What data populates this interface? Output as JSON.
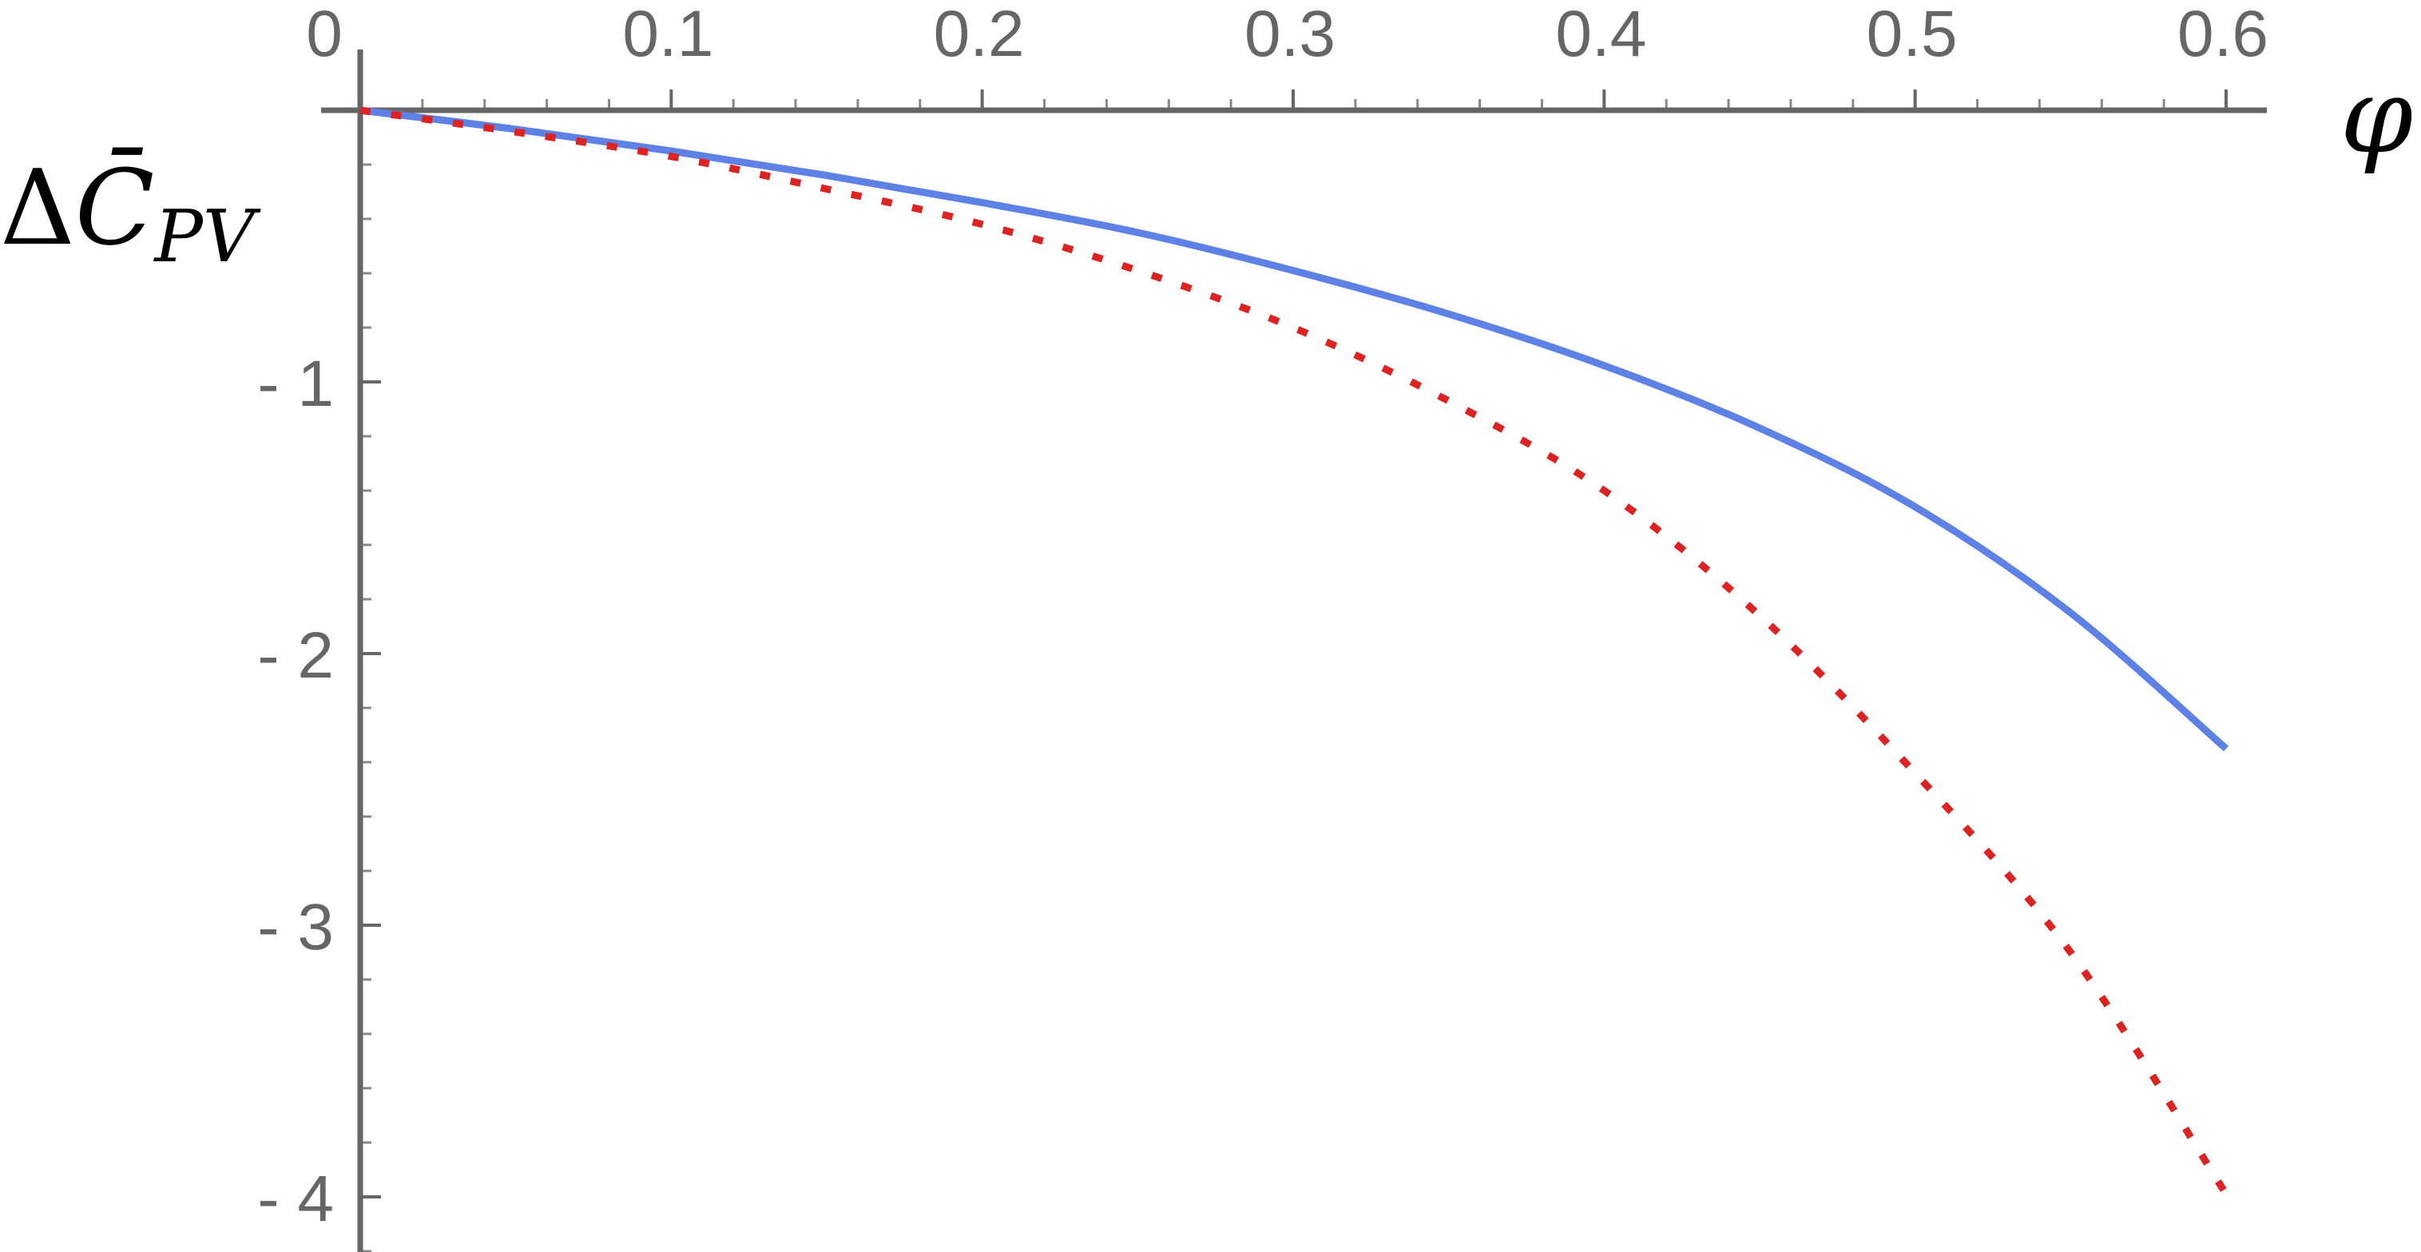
{
  "chart_data": {
    "type": "line",
    "xlabel": "φ",
    "ylabel": {
      "prefix": "Δ",
      "symbol": "C̄",
      "subscript": "PV"
    },
    "xlim": [
      0,
      0.6
    ],
    "ylim": [
      -4.2,
      0.2
    ],
    "x_ticks": [
      {
        "value": 0,
        "label": "0"
      },
      {
        "value": 0.1,
        "label": "0.1"
      },
      {
        "value": 0.2,
        "label": "0.2"
      },
      {
        "value": 0.3,
        "label": "0.3"
      },
      {
        "value": 0.4,
        "label": "0.4"
      },
      {
        "value": 0.5,
        "label": "0.5"
      },
      {
        "value": 0.6,
        "label": "0.6"
      }
    ],
    "y_ticks": [
      {
        "value": -1,
        "label": "- 1"
      },
      {
        "value": -2,
        "label": "- 2"
      },
      {
        "value": -3,
        "label": "- 3"
      },
      {
        "value": -4,
        "label": "- 4"
      }
    ],
    "grid": false,
    "series": [
      {
        "style": "solid",
        "color": "#5e81e6",
        "points": [
          [
            0,
            0
          ],
          [
            0.05,
            -0.07
          ],
          [
            0.1,
            -0.15
          ],
          [
            0.15,
            -0.24
          ],
          [
            0.2,
            -0.34
          ],
          [
            0.25,
            -0.45
          ],
          [
            0.3,
            -0.59
          ],
          [
            0.35,
            -0.75
          ],
          [
            0.4,
            -0.94
          ],
          [
            0.45,
            -1.17
          ],
          [
            0.5,
            -1.46
          ],
          [
            0.55,
            -1.85
          ],
          [
            0.6,
            -2.35
          ]
        ]
      },
      {
        "style": "dotted",
        "color": "#dd2222",
        "points": [
          [
            0,
            0
          ],
          [
            0.05,
            -0.08
          ],
          [
            0.1,
            -0.17
          ],
          [
            0.15,
            -0.29
          ],
          [
            0.2,
            -0.42
          ],
          [
            0.25,
            -0.59
          ],
          [
            0.3,
            -0.8
          ],
          [
            0.35,
            -1.07
          ],
          [
            0.4,
            -1.4
          ],
          [
            0.45,
            -1.86
          ],
          [
            0.5,
            -2.44
          ],
          [
            0.55,
            -3.1
          ],
          [
            0.6,
            -3.99
          ]
        ]
      }
    ]
  }
}
